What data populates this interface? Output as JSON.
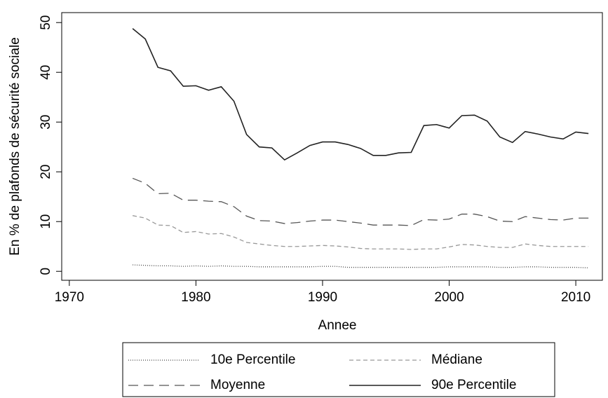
{
  "chart_data": {
    "type": "line",
    "xlabel": "Annee",
    "ylabel": "En % de plafonds de sécurité sociale",
    "x": [
      1975,
      1976,
      1977,
      1978,
      1979,
      1980,
      1981,
      1982,
      1983,
      1984,
      1985,
      1986,
      1987,
      1988,
      1989,
      1990,
      1991,
      1992,
      1993,
      1994,
      1995,
      1996,
      1997,
      1998,
      1999,
      2000,
      2001,
      2002,
      2003,
      2004,
      2005,
      2006,
      2007,
      2008,
      2009,
      2010,
      2011
    ],
    "series": [
      {
        "name": "10e Percentile",
        "color": "#444444",
        "dash": "dotted",
        "values": [
          1.3,
          1.2,
          1.1,
          1.1,
          1.0,
          1.1,
          1.0,
          1.1,
          1.0,
          1.0,
          0.9,
          0.9,
          0.9,
          0.9,
          0.9,
          1.0,
          1.0,
          0.8,
          0.8,
          0.8,
          0.8,
          0.8,
          0.8,
          0.8,
          0.8,
          0.9,
          0.9,
          0.9,
          0.9,
          0.8,
          0.8,
          0.9,
          0.9,
          0.8,
          0.8,
          0.8,
          0.7
        ]
      },
      {
        "name": "Médiane",
        "color": "#999999",
        "dash": "dashed",
        "values": [
          11.2,
          10.7,
          9.3,
          9.2,
          7.8,
          8.0,
          7.5,
          7.6,
          6.9,
          5.8,
          5.5,
          5.2,
          5.0,
          5.0,
          5.1,
          5.2,
          5.1,
          4.9,
          4.6,
          4.5,
          4.5,
          4.5,
          4.4,
          4.5,
          4.5,
          4.9,
          5.4,
          5.3,
          5.0,
          4.8,
          4.8,
          5.5,
          5.2,
          5.0,
          5.0,
          5.0,
          5.0
        ]
      },
      {
        "name": "Moyenne",
        "color": "#555555",
        "dash": "longdash",
        "values": [
          18.7,
          17.7,
          15.6,
          15.7,
          14.3,
          14.3,
          14.1,
          14.0,
          13.0,
          11.1,
          10.2,
          10.1,
          9.6,
          9.8,
          10.1,
          10.3,
          10.3,
          10.0,
          9.7,
          9.3,
          9.3,
          9.3,
          9.2,
          10.4,
          10.3,
          10.5,
          11.5,
          11.5,
          11.0,
          10.1,
          10.0,
          11.0,
          10.7,
          10.4,
          10.3,
          10.7,
          10.7
        ]
      },
      {
        "name": "90e Percentile",
        "color": "#222222",
        "dash": "solid",
        "values": [
          48.8,
          46.7,
          41.0,
          40.3,
          37.2,
          37.3,
          36.4,
          37.1,
          34.2,
          27.5,
          25.0,
          24.8,
          22.4,
          23.8,
          25.3,
          26.0,
          26.0,
          25.5,
          24.7,
          23.3,
          23.3,
          23.8,
          23.9,
          29.3,
          29.5,
          28.8,
          31.3,
          31.4,
          30.2,
          27.0,
          25.9,
          28.1,
          27.6,
          27.0,
          26.6,
          28.0,
          27.7
        ]
      }
    ],
    "xlim": [
      1969.4,
      2012.1
    ],
    "ylim": [
      -1.8,
      52
    ],
    "xticks": [
      1970,
      1980,
      1990,
      2000,
      2010
    ],
    "yticks": [
      0,
      10,
      20,
      30,
      40,
      50
    ]
  }
}
